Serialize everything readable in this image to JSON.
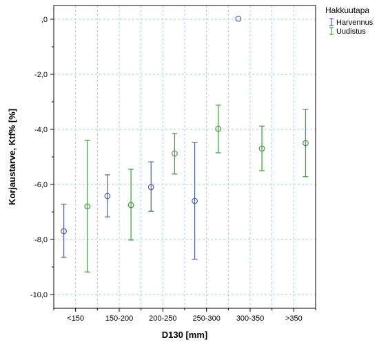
{
  "chart_data": {
    "type": "errorbar",
    "xlabel": "D130 [mm]",
    "ylabel": "Korjaustarve, Ktf% [%]",
    "categories": [
      "<150",
      "150-200",
      "200-250",
      "250-300",
      "300-350",
      ">350"
    ],
    "ylim": [
      -10.5,
      0.5
    ],
    "yticks": [
      0,
      -2,
      -4,
      -6,
      -8,
      -10
    ],
    "ytick_labels": [
      ",0",
      "-2,0",
      "-4,0",
      "-6,0",
      "-8,0",
      "-10,0"
    ],
    "grid": true,
    "legend": {
      "title": "Hakkuutapa",
      "placement": "right"
    },
    "series": [
      {
        "name": "Harvennus",
        "color": "#4a5fab",
        "points": [
          {
            "category": "<150",
            "mean": -7.7,
            "low": -8.65,
            "high": -6.72
          },
          {
            "category": "150-200",
            "mean": -6.42,
            "low": -7.18,
            "high": -5.65
          },
          {
            "category": "200-250",
            "mean": -6.1,
            "low": -6.98,
            "high": -5.18
          },
          {
            "category": "250-300",
            "mean": -6.6,
            "low": -8.72,
            "high": -4.48
          },
          {
            "category": "300-350",
            "mean": 0.02,
            "low": null,
            "high": null
          }
        ]
      },
      {
        "name": "Uudistus",
        "color": "#3a9e3a",
        "points": [
          {
            "category": "<150",
            "mean": -6.8,
            "low": -9.18,
            "high": -4.4
          },
          {
            "category": "150-200",
            "mean": -6.75,
            "low": -8.02,
            "high": -5.45
          },
          {
            "category": "200-250",
            "mean": -4.88,
            "low": -5.62,
            "high": -4.15
          },
          {
            "category": "250-300",
            "mean": -3.98,
            "low": -4.85,
            "high": -3.12
          },
          {
            "category": "300-350",
            "mean": -4.7,
            "low": -5.5,
            "high": -3.88
          },
          {
            "category": ">350",
            "mean": -4.5,
            "low": -5.72,
            "high": -3.28
          }
        ]
      }
    ]
  }
}
